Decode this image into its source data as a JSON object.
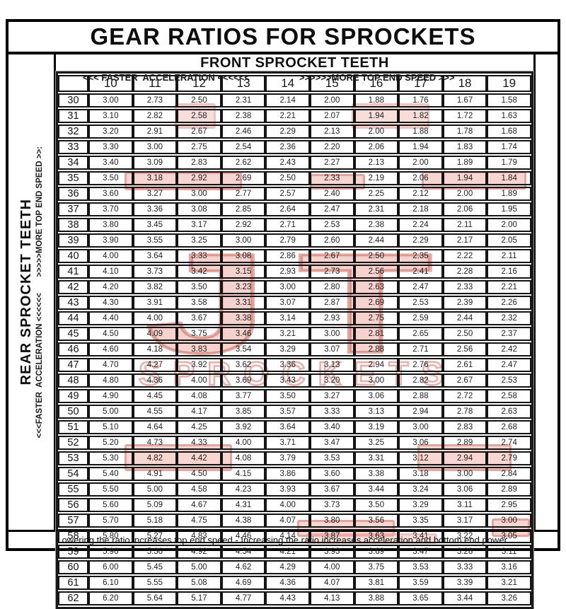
{
  "page_title": "GEAR RATIOS FOR SPROCKETS",
  "front_axis": {
    "title": "FRONT SPROCKET TEETH",
    "accel_hint": "<<< FASTER  ACCELERATION <<<<<<",
    "speed_hint": ">>>>>>MORE TOP END SPEED >>>"
  },
  "rear_axis": {
    "title": "REAR SPROCKET TEETH",
    "hint": "<<<FASTER  ACCELERATION <<<<<<       >>>>>MORE TOP END SPEED >>:"
  },
  "footer_note": "Lowering the ratio increases top end speed - Increasing the ratio increases acceleration and bottom end power.",
  "watermark": {
    "brand_top": "JT",
    "brand_bottom": "SPROCKETS",
    "accent_color": "#c0463a",
    "fill_color": "#f2c6c1"
  },
  "chart_data": {
    "type": "table",
    "title": "GEAR RATIOS FOR SPROCKETS",
    "xlabel": "FRONT SPROCKET TEETH",
    "ylabel": "REAR SPROCKET TEETH",
    "front_teeth": [
      10,
      11,
      12,
      13,
      14,
      15,
      16,
      17,
      18,
      19
    ],
    "rear_teeth": [
      30,
      31,
      32,
      33,
      34,
      35,
      36,
      37,
      38,
      39,
      40,
      41,
      42,
      43,
      44,
      45,
      46,
      47,
      48,
      49,
      50,
      51,
      52,
      53,
      54,
      55,
      56,
      57,
      58,
      59,
      60,
      61,
      62
    ],
    "ratios": [
      [
        "3.00",
        "2.73",
        "2.50",
        "2.31",
        "2.14",
        "2.00",
        "1.88",
        "1.76",
        "1.67",
        "1.58"
      ],
      [
        "3.10",
        "2.82",
        "2.58",
        "2.38",
        "2.21",
        "2.07",
        "1.94",
        "1.82",
        "1.72",
        "1.63"
      ],
      [
        "3.20",
        "2.91",
        "2.67",
        "2.46",
        "2.29",
        "2.13",
        "2.00",
        "1.88",
        "1.78",
        "1.68"
      ],
      [
        "3.30",
        "3.00",
        "2.75",
        "2.54",
        "2.36",
        "2.20",
        "2.06",
        "1.94",
        "1.83",
        "1.74"
      ],
      [
        "3.40",
        "3.09",
        "2.83",
        "2.62",
        "2.43",
        "2.27",
        "2.13",
        "2.00",
        "1.89",
        "1.79"
      ],
      [
        "3.50",
        "3.18",
        "2.92",
        "2.69",
        "2.50",
        "2.33",
        "2.19",
        "2.06",
        "1.94",
        "1.84"
      ],
      [
        "3.60",
        "3.27",
        "3.00",
        "2.77",
        "2.57",
        "2.40",
        "2.25",
        "2.12",
        "2.00",
        "1.89"
      ],
      [
        "3.70",
        "3.36",
        "3.08",
        "2.85",
        "2.64",
        "2.47",
        "2.31",
        "2.18",
        "2.06",
        "1.95"
      ],
      [
        "3.80",
        "3.45",
        "3.17",
        "2.92",
        "2.71",
        "2.53",
        "2.38",
        "2.24",
        "2.11",
        "2.00"
      ],
      [
        "3.90",
        "3.55",
        "3.25",
        "3.00",
        "2.79",
        "2.60",
        "2.44",
        "2.29",
        "2.17",
        "2.05"
      ],
      [
        "4.00",
        "3.64",
        "3.33",
        "3.08",
        "2.86",
        "2.67",
        "2.50",
        "2.35",
        "2.22",
        "2.11"
      ],
      [
        "4.10",
        "3.73",
        "3.42",
        "3.15",
        "2.93",
        "2.73",
        "2.56",
        "2.41",
        "2.28",
        "2.16"
      ],
      [
        "4.20",
        "3.82",
        "3.50",
        "3.23",
        "3.00",
        "2.80",
        "2.63",
        "2.47",
        "2.33",
        "2.21"
      ],
      [
        "4.30",
        "3.91",
        "3.58",
        "3.31",
        "3.07",
        "2.87",
        "2.69",
        "2.53",
        "2.39",
        "2.26"
      ],
      [
        "4.40",
        "4.00",
        "3.67",
        "3.38",
        "3.14",
        "2.93",
        "2.75",
        "2.59",
        "2.44",
        "2.32"
      ],
      [
        "4.50",
        "4.09",
        "3.75",
        "3.46",
        "3.21",
        "3.00",
        "2.81",
        "2.65",
        "2.50",
        "2.37"
      ],
      [
        "4.60",
        "4.18",
        "3.83",
        "3.54",
        "3.29",
        "3.07",
        "2.88",
        "2.71",
        "2.56",
        "2.42"
      ],
      [
        "4.70",
        "4.27",
        "3.92",
        "3.62",
        "3.36",
        "3.13",
        "2.94",
        "2.76",
        "2.61",
        "2.47"
      ],
      [
        "4.80",
        "4.36",
        "4.00",
        "3.69",
        "3.43",
        "3.20",
        "3.00",
        "2.82",
        "2.67",
        "2.53"
      ],
      [
        "4.90",
        "4.45",
        "4.08",
        "3.77",
        "3.50",
        "3.27",
        "3.06",
        "2.88",
        "2.72",
        "2.58"
      ],
      [
        "5.00",
        "4.55",
        "4.17",
        "3.85",
        "3.57",
        "3.33",
        "3.13",
        "2.94",
        "2.78",
        "2.63"
      ],
      [
        "5.10",
        "4.64",
        "4.25",
        "3.92",
        "3.64",
        "3.40",
        "3.19",
        "3.00",
        "2.83",
        "2.68"
      ],
      [
        "5.20",
        "4.73",
        "4.33",
        "4.00",
        "3.71",
        "3.47",
        "3.25",
        "3.06",
        "2.89",
        "2.74"
      ],
      [
        "5.30",
        "4.82",
        "4.42",
        "4.08",
        "3.79",
        "3.53",
        "3.31",
        "3.12",
        "2.94",
        "2.79"
      ],
      [
        "5.40",
        "4.91",
        "4.50",
        "4.15",
        "3.86",
        "3.60",
        "3.38",
        "3.18",
        "3.00",
        "2.84"
      ],
      [
        "5.50",
        "5.00",
        "4.58",
        "4.23",
        "3.93",
        "3.67",
        "3.44",
        "3.24",
        "3.06",
        "2.89"
      ],
      [
        "5.60",
        "5.09",
        "4.67",
        "4.31",
        "4.00",
        "3.73",
        "3.50",
        "3.29",
        "3.11",
        "2.95"
      ],
      [
        "5.70",
        "5.18",
        "4.75",
        "4.38",
        "4.07",
        "3.80",
        "3.56",
        "3.35",
        "3.17",
        "3.00"
      ],
      [
        "5.80",
        "5.27",
        "4.83",
        "4.46",
        "4.14",
        "3.87",
        "3.63",
        "3.41",
        "3.22",
        "3.05"
      ],
      [
        "5.90",
        "5.36",
        "4.92",
        "4.54",
        "4.21",
        "3.93",
        "3.69",
        "3.47",
        "3.28",
        "3.11"
      ],
      [
        "6.00",
        "5.45",
        "5.00",
        "4.62",
        "4.29",
        "4.00",
        "3.75",
        "3.53",
        "3.33",
        "3.16"
      ],
      [
        "6.10",
        "5.55",
        "5.08",
        "4.69",
        "4.36",
        "4.07",
        "3.81",
        "3.59",
        "3.39",
        "3.21"
      ],
      [
        "6.20",
        "5.64",
        "5.17",
        "4.77",
        "4.43",
        "4.13",
        "3.88",
        "3.65",
        "3.44",
        "3.26"
      ]
    ]
  }
}
